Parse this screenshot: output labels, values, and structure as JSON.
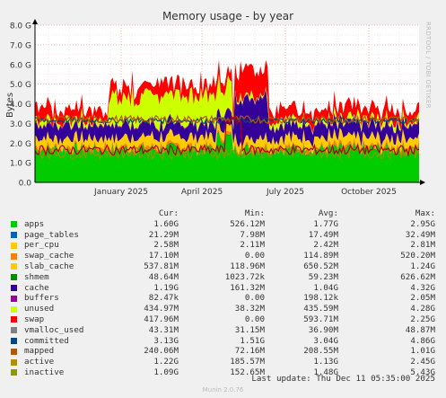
{
  "chart_data": {
    "type": "area",
    "title": "Memory usage - by year",
    "ylabel": "Bytes",
    "ylim": [
      0,
      8.0
    ],
    "yunit": "G",
    "yticks": [
      "0.0",
      "1.0 G",
      "2.0 G",
      "3.0 G",
      "4.0 G",
      "5.0 G",
      "6.0 G",
      "7.0 G",
      "8.0 G"
    ],
    "xticks": [
      "January 2025",
      "April 2025",
      "July 2025",
      "October 2025"
    ],
    "grid": true,
    "legend_columns": [
      "Cur:",
      "Min:",
      "Avg:",
      "Max:"
    ],
    "series": [
      {
        "name": "apps",
        "color": "#00cc00",
        "cur": "1.60G",
        "min": "526.12M",
        "avg": "1.77G",
        "max": "2.95G"
      },
      {
        "name": "page_tables",
        "color": "#0066b3",
        "cur": "21.29M",
        "min": "7.98M",
        "avg": "17.49M",
        "max": "32.49M"
      },
      {
        "name": "per_cpu",
        "color": "#ff8000",
        "cur": "2.58M",
        "min": "2.11M",
        "avg": "2.42M",
        "max": "2.81M"
      },
      {
        "name": "swap_cache",
        "color": "#ffcc00",
        "cur": "17.10M",
        "min": "0.00",
        "avg": "114.89M",
        "max": "520.20M"
      },
      {
        "name": "slab_cache",
        "color": "#330099",
        "cur": "537.81M",
        "min": "118.96M",
        "avg": "650.52M",
        "max": "1.24G"
      },
      {
        "name": "shmem",
        "color": "#990099",
        "cur": "48.64M",
        "min": "1023.72k",
        "avg": "59.23M",
        "max": "626.62M"
      },
      {
        "name": "cache",
        "color": "#ccff00",
        "cur": "1.19G",
        "min": "161.32M",
        "avg": "1.04G",
        "max": "4.32G"
      },
      {
        "name": "buffers",
        "color": "#ff0000",
        "cur": "82.47k",
        "min": "0.00",
        "avg": "198.12k",
        "max": "2.05M"
      },
      {
        "name": "unused",
        "color": "#808080",
        "cur": "434.97M",
        "min": "38.32M",
        "avg": "435.59M",
        "max": "4.28G"
      },
      {
        "name": "swap",
        "color": "#008f00",
        "cur": "417.96M",
        "min": "0.00",
        "avg": "593.71M",
        "max": "2.25G"
      },
      {
        "name": "vmalloc_used",
        "color": "#00487d",
        "cur": "43.31M",
        "min": "31.15M",
        "avg": "36.90M",
        "max": "48.87M"
      },
      {
        "name": "committed",
        "color": "#b35a00",
        "cur": "3.13G",
        "min": "1.51G",
        "avg": "3.04G",
        "max": "4.86G"
      },
      {
        "name": "mapped",
        "color": "#b38f00",
        "cur": "240.06M",
        "min": "72.16M",
        "avg": "208.55M",
        "max": "1.01G"
      },
      {
        "name": "active",
        "color": "#6b006b",
        "cur": "1.22G",
        "min": "185.57M",
        "avg": "1.13G",
        "max": "2.45G"
      },
      {
        "name": "inactive",
        "color": "#8f9900",
        "cur": "1.09G",
        "min": "152.65M",
        "avg": "1.48G",
        "max": "5.43G"
      }
    ]
  },
  "legend_display_colors": [
    "#00cc00",
    "#0066b3",
    "#ffcc00",
    "#ff8000",
    "#ffcc00",
    "#008f00",
    "#330099",
    "#990099",
    "#ccff00",
    "#ff0000",
    "#808080",
    "#00487d",
    "#b35a00",
    "#b38f00",
    "#8f9900",
    "#b30000"
  ],
  "footer": {
    "last_update": "Last update: Thu Dec 11 05:35:00 2025",
    "version": "Munin 2.0.76",
    "watermark": "RRDTOOL / TOBI OETIKER"
  }
}
